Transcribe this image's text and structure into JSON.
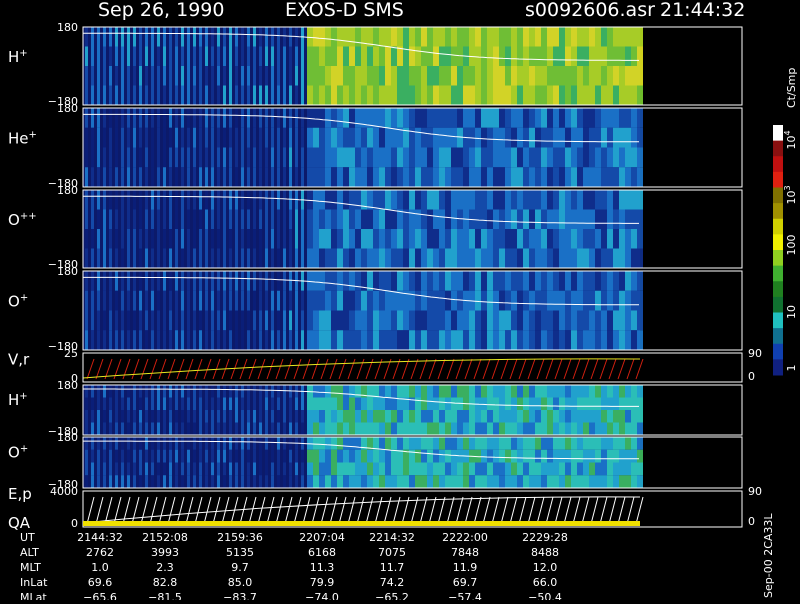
{
  "header": {
    "date": "Sep 26, 1990",
    "instrument": "EXOS-D SMS",
    "file": "s0092606.asr",
    "time": "21:44:32"
  },
  "panels": [
    {
      "label": "H",
      "sup": "+",
      "top": "180",
      "bottom": "−180"
    },
    {
      "label": "He",
      "sup": "+",
      "top": "180",
      "bottom": "−180"
    },
    {
      "label": "O",
      "sup": "++",
      "top": "180",
      "bottom": "−180"
    },
    {
      "label": "O",
      "sup": "+",
      "top": "180",
      "bottom": "−180"
    },
    {
      "label": "V,r",
      "top": "25",
      "bottom": "0",
      "right_top": "90",
      "right_bottom": "0"
    },
    {
      "label": "H",
      "sup": "+",
      "top": "180",
      "bottom": "−180"
    },
    {
      "label": "O",
      "sup": "+",
      "top": "180",
      "bottom": "−180"
    },
    {
      "label": "E,p",
      "label2": "QA",
      "top": "4000",
      "bottom": "0",
      "right_top": "90",
      "right_bottom": "0"
    }
  ],
  "colorbar": {
    "title": "Ct/Smp",
    "ticks": [
      {
        "base": "10",
        "exp": "4"
      },
      {
        "base": "10",
        "exp": "3"
      },
      {
        "base": "100"
      },
      {
        "base": "10"
      },
      {
        "base": "1"
      }
    ]
  },
  "footer_note": "Sep-00 2CA33L",
  "table": {
    "rows": [
      [
        "UT",
        "2144:32",
        "2152:08",
        "2159:36",
        "2207:04",
        "2214:32",
        "2222:00",
        "2229:28"
      ],
      [
        "ALT",
        "2762",
        "3993",
        "5135",
        "6168",
        "7075",
        "7848",
        "8488"
      ],
      [
        "MLT",
        "1.0",
        "2.3",
        "9.7",
        "11.3",
        "11.7",
        "11.9",
        "12.0"
      ],
      [
        "InLat",
        "69.6",
        "82.8",
        "85.0",
        "79.9",
        "74.2",
        "69.7",
        "66.0"
      ],
      [
        "MLat",
        "−65.6",
        "−81.5",
        "−83.7",
        "−74.0",
        "−65.2",
        "−57.4",
        "−50.4"
      ]
    ]
  }
}
